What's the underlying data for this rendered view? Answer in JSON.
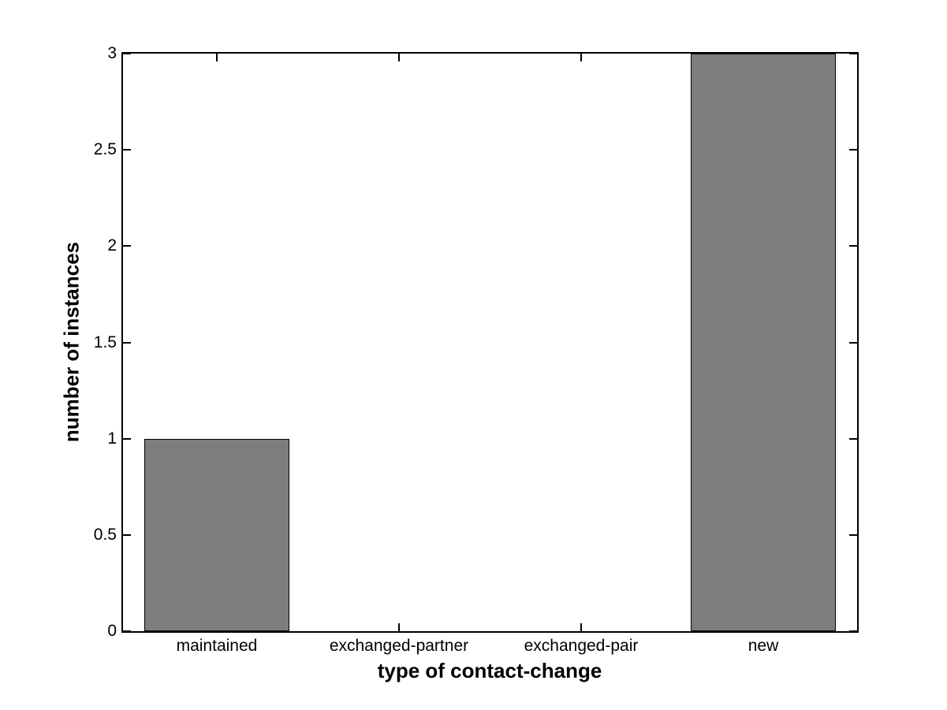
{
  "figure": {
    "background": "#ffffff",
    "axis_color": "#000000"
  },
  "chart_data": {
    "type": "bar",
    "categories": [
      "maintained",
      "exchanged-partner",
      "exchanged-pair",
      "new"
    ],
    "values": [
      1,
      0,
      0,
      3
    ],
    "title": "",
    "xlabel": "type of contact-change",
    "ylabel": "number of instances",
    "x_positions": [
      1,
      2,
      3,
      4
    ],
    "xlim": [
      0.485,
      4.515
    ],
    "ylim": [
      0,
      3
    ],
    "ytick_values": [
      0,
      0.5,
      1,
      1.5,
      2,
      2.5,
      3
    ],
    "ytick_labels": [
      "0",
      "0.5",
      "1",
      "1.5",
      "2",
      "2.5",
      "3"
    ],
    "bar_width": 0.8,
    "bar_fill": "#7d7d7d",
    "bar_edge": "#000000",
    "grid": false,
    "legend": null,
    "tick_direction": "in",
    "box": true
  }
}
